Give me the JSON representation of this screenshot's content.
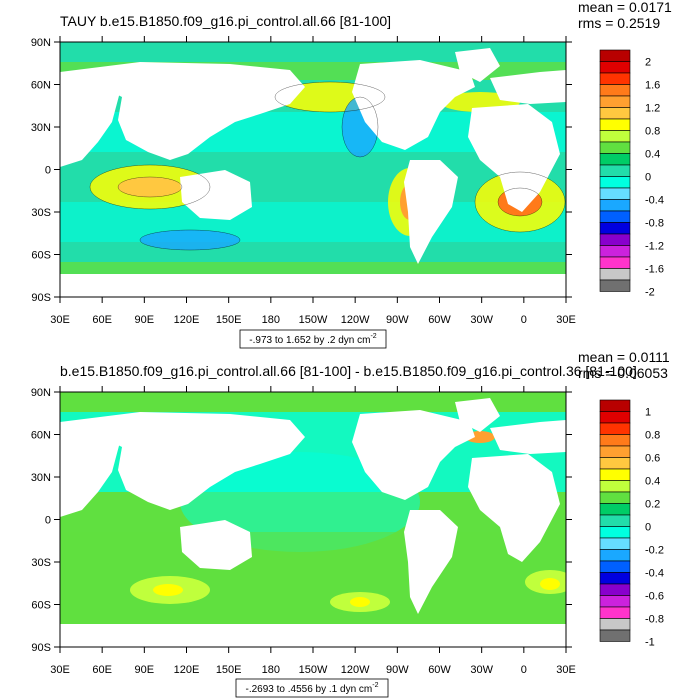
{
  "chart_data": [
    {
      "type": "heatmap",
      "title": "TAUY b.e15.B1850.f09_g16.pi_control.all.66 [81-100]",
      "stats": {
        "mean": "mean = 0.0171",
        "rms": "rms = 0.2519"
      },
      "contour_info": "-.973 to 1.652 by .2 dyn cm",
      "contour_info_sup": "-2",
      "xticks": [
        "30E",
        "60E",
        "90E",
        "120E",
        "150E",
        "180",
        "150W",
        "120W",
        "90W",
        "60W",
        "30W",
        "0",
        "30E"
      ],
      "yticks": [
        "90N",
        "60N",
        "30N",
        "0",
        "30S",
        "60S",
        "90S"
      ],
      "xlim": [
        30,
        390
      ],
      "ylim": [
        -90,
        90
      ],
      "colorbar": {
        "labels": [
          "2",
          "1.6",
          "1.2",
          "0.8",
          "0.4",
          "0",
          "-0.4",
          "-0.8",
          "-1.2",
          "-1.6",
          "-2"
        ],
        "colors": [
          "#b80000",
          "#e00000",
          "#ff3300",
          "#ff7a1a",
          "#ffa030",
          "#ffc840",
          "#ffff00",
          "#c0ff3c",
          "#60e040",
          "#00cc66",
          "#22ddaa",
          "#00ffe0",
          "#66ddff",
          "#1aa8ff",
          "#0060ff",
          "#0000e0",
          "#8800cc",
          "#cc22dd",
          "#ff33cc",
          "#c8c8c8",
          "#707070"
        ]
      }
    },
    {
      "type": "heatmap",
      "title": "b.e15.B1850.f09_g16.pi_control.all.66 [81-100] - b.e15.B1850.f09_g16.pi_control.36 [81-100]",
      "stats": {
        "mean": "mean = 0.0111",
        "rms": "rms = 0.06053"
      },
      "contour_info": "-.2693 to .4556 by .1 dyn cm",
      "contour_info_sup": "-2",
      "xticks": [
        "30E",
        "60E",
        "90E",
        "120E",
        "150E",
        "180",
        "150W",
        "120W",
        "90W",
        "60W",
        "30W",
        "0",
        "30E"
      ],
      "yticks": [
        "90N",
        "60N",
        "30N",
        "0",
        "30S",
        "60S",
        "90S"
      ],
      "xlim": [
        30,
        390
      ],
      "ylim": [
        -90,
        90
      ],
      "colorbar": {
        "labels": [
          "1",
          "0.8",
          "0.6",
          "0.4",
          "0.2",
          "0",
          "-0.2",
          "-0.4",
          "-0.6",
          "-0.8",
          "-1"
        ],
        "colors": [
          "#b80000",
          "#e00000",
          "#ff3300",
          "#ff7a1a",
          "#ffa030",
          "#ffc840",
          "#ffff00",
          "#c0ff3c",
          "#60e040",
          "#00cc66",
          "#22ddaa",
          "#00ffe0",
          "#66ddff",
          "#1aa8ff",
          "#0060ff",
          "#0000e0",
          "#8800cc",
          "#cc22dd",
          "#ff33cc",
          "#c8c8c8",
          "#707070"
        ]
      }
    }
  ]
}
